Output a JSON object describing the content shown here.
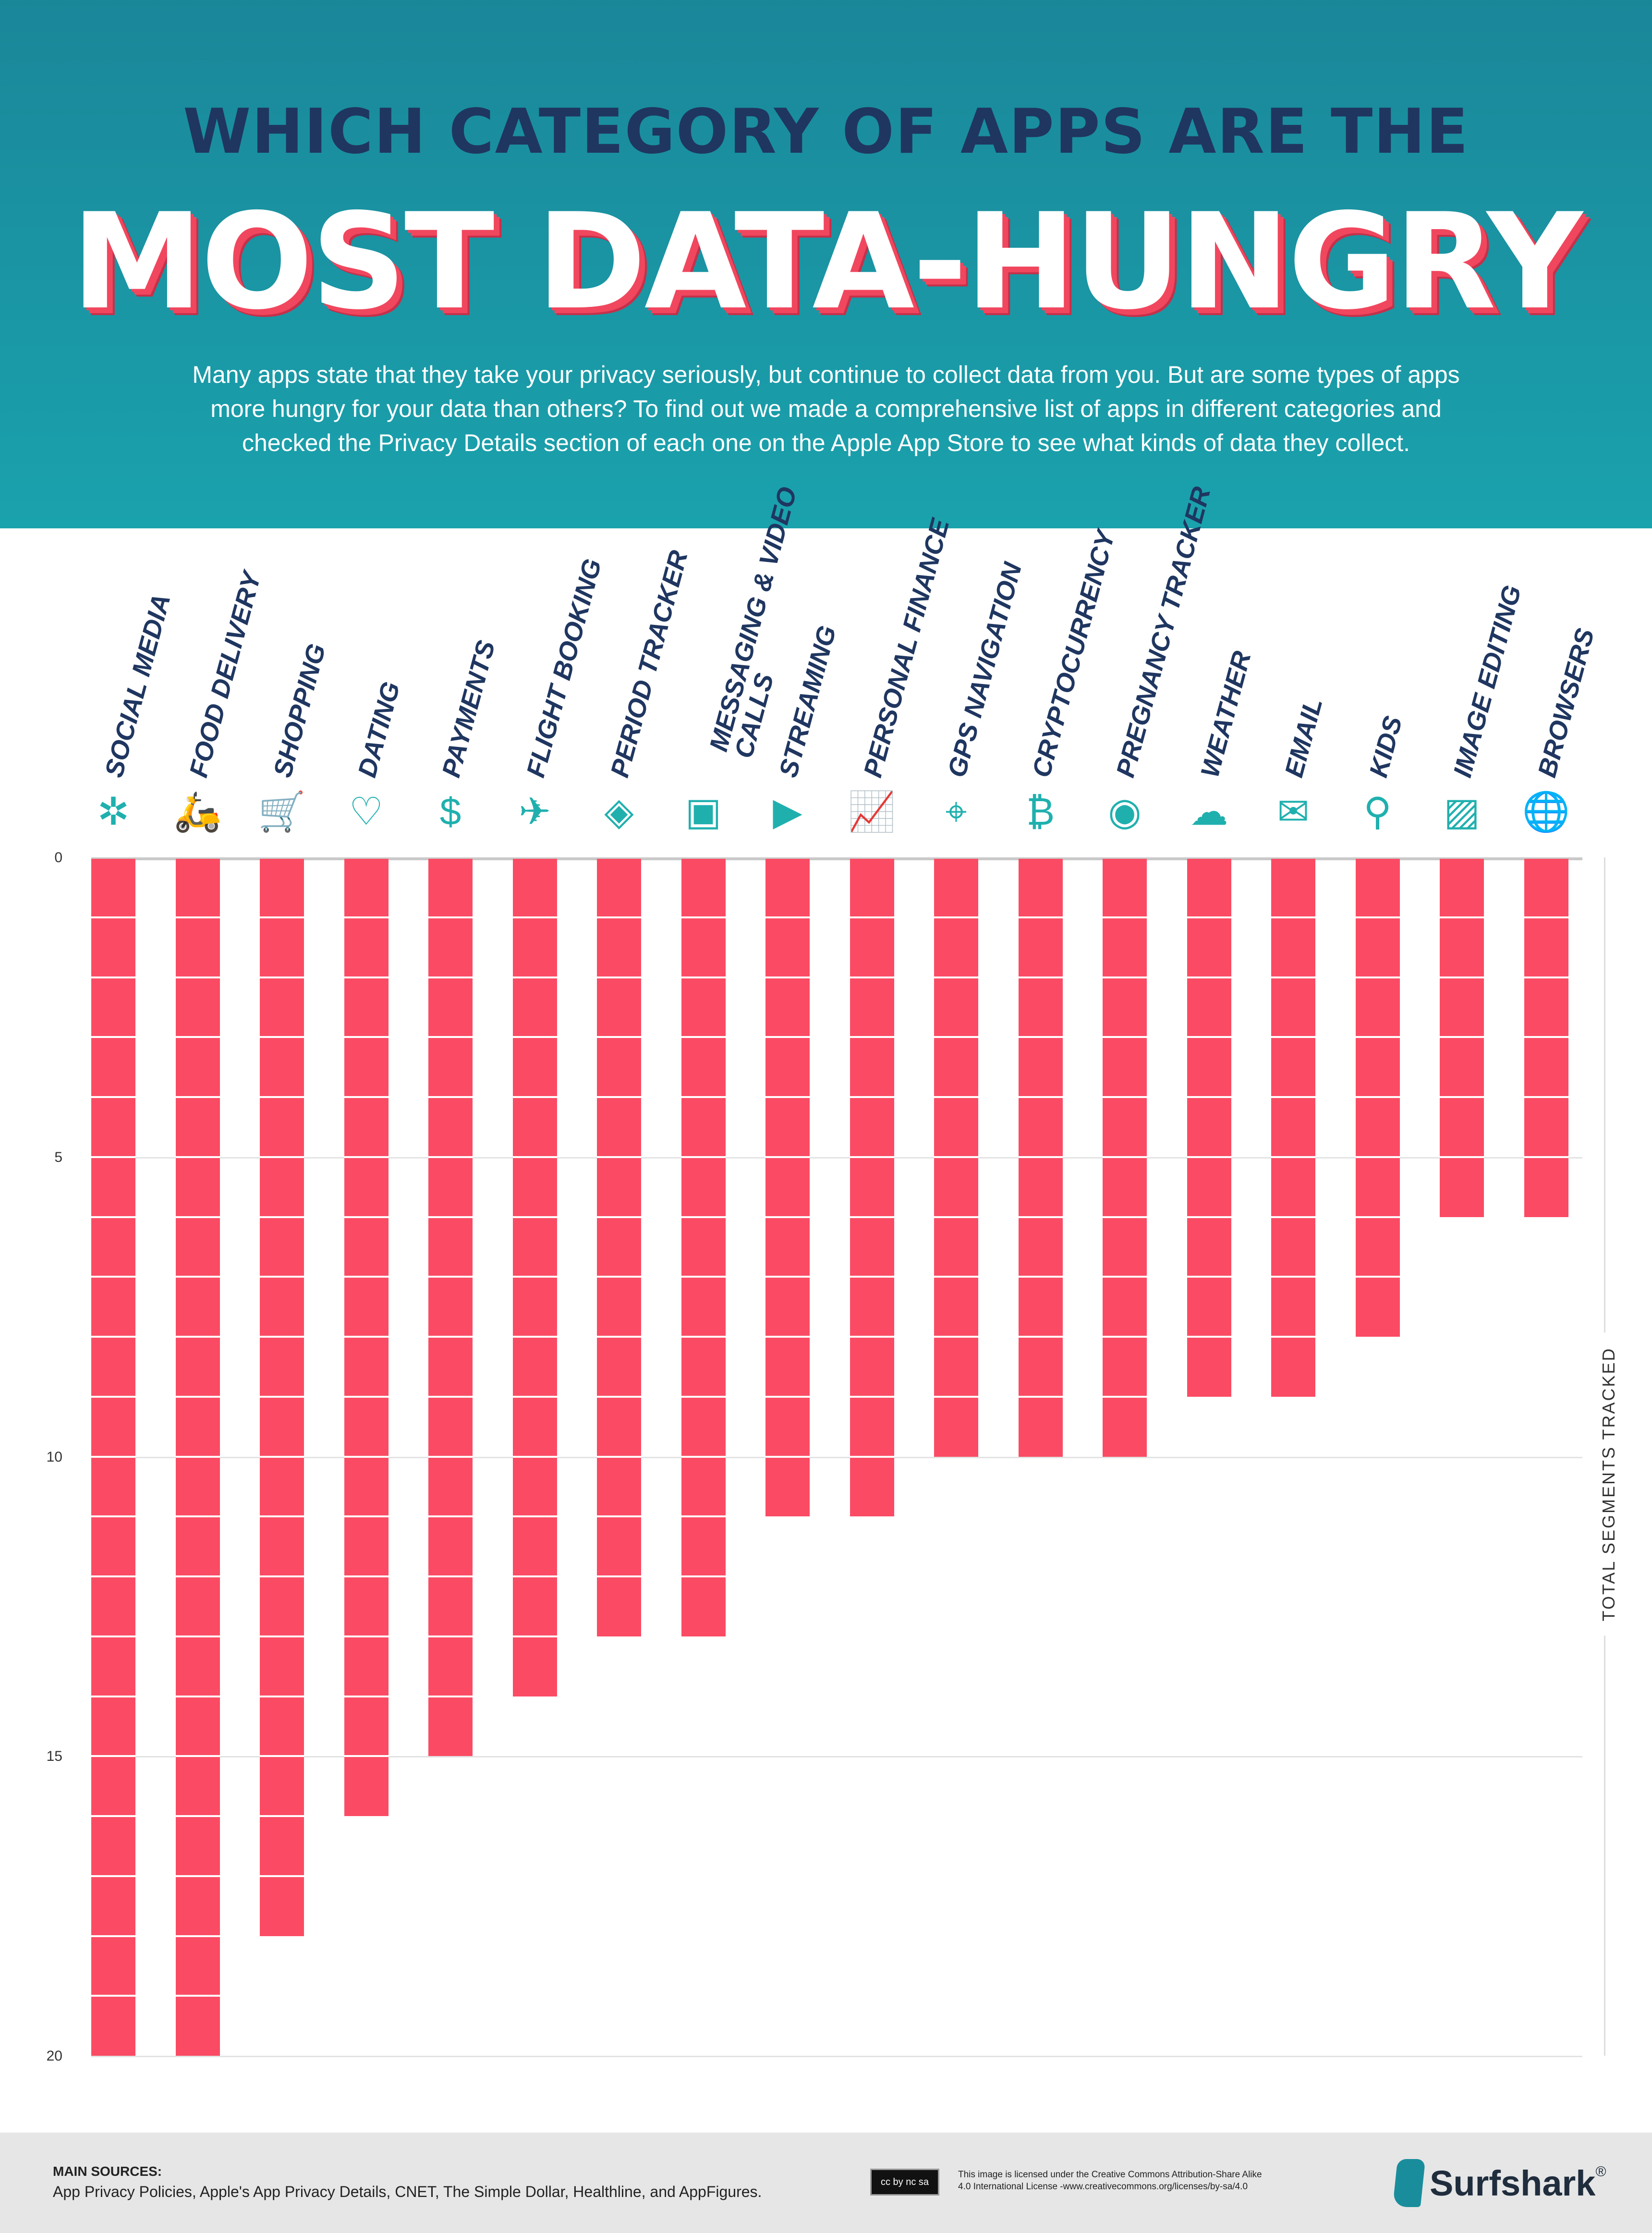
{
  "header": {
    "title_line1": "WHICH CATEGORY OF APPS ARE THE",
    "title_line2": "MOST DATA-HUNGRY",
    "intro_lines": [
      "Many apps state that they take your privacy seriously, but continue to collect data from you. But are some types of apps",
      "more hungry for your data than others? To find out we made a comprehensive list of apps in different categories and",
      "checked the Privacy Details section of each one on the Apple App Store to see what kinds of data they collect."
    ]
  },
  "colors": {
    "header_top": "#1a8799",
    "header_bottom": "#1aa2ad",
    "bar": "#fb4b64",
    "title": "#1f3660",
    "icon": "#1fb0ae"
  },
  "chart_data": {
    "type": "bar",
    "orientation": "vertical-downward",
    "ylabel": "TOTAL SEGMENTS TRACKED",
    "ylim": [
      0,
      20
    ],
    "yticks": [
      "0",
      "5",
      "10",
      "15",
      "20"
    ],
    "grid": true,
    "categories": [
      "SOCIAL MEDIA",
      "FOOD DELIVERY",
      "SHOPPING",
      "DATING",
      "PAYMENTS",
      "FLIGHT BOOKING",
      "PERIOD TRACKER",
      "MESSAGING & VIDEO CALLS",
      "STREAMING",
      "PERSONAL FINANCE",
      "GPS NAVIGATION",
      "CRYPTOCURRENCY",
      "PREGNANCY TRACKER",
      "WEATHER",
      "EMAIL",
      "KIDS",
      "IMAGE EDITING",
      "BROWSERS"
    ],
    "category_lines": [
      [
        "SOCIAL MEDIA"
      ],
      [
        "FOOD DELIVERY"
      ],
      [
        "SHOPPING"
      ],
      [
        "DATING"
      ],
      [
        "PAYMENTS"
      ],
      [
        "FLIGHT BOOKING"
      ],
      [
        "PERIOD TRACKER"
      ],
      [
        "MESSAGING & VIDEO",
        "CALLS"
      ],
      [
        "STREAMING"
      ],
      [
        "PERSONAL FINANCE"
      ],
      [
        "GPS NAVIGATION"
      ],
      [
        "CRYPTOCURRENCY"
      ],
      [
        "PREGNANCY TRACKER"
      ],
      [
        "WEATHER"
      ],
      [
        "EMAIL"
      ],
      [
        "KIDS"
      ],
      [
        "IMAGE EDITING"
      ],
      [
        "BROWSERS"
      ]
    ],
    "icons": [
      "network-icon",
      "scooter-icon",
      "cart-icon",
      "phone-heart-icon",
      "hand-phone-dollar-icon",
      "tablet-plane-icon",
      "calendar-drop-icon",
      "video-chat-icon",
      "play-icon",
      "growth-chart-icon",
      "phone-map-pin-icon",
      "coins-icon",
      "fetus-icon",
      "sun-cloud-icon",
      "envelope-at-icon",
      "rattle-icon",
      "image-icon",
      "globe-browser-icon"
    ],
    "values": [
      20,
      20,
      18,
      16,
      15,
      14,
      13,
      13,
      11,
      11,
      10,
      10,
      10,
      9,
      9,
      8,
      6,
      6
    ]
  },
  "footer": {
    "sources_heading": "MAIN SOURCES:",
    "sources": "App Privacy Policies, Apple's App Privacy Details, CNET, The Simple Dollar, Healthline, and AppFigures.",
    "cc_badge": "cc by nc sa",
    "license_line1": "This image is licensed under the Creative Commons Attribution-Share Alike",
    "license_line2": "4.0 International License -www.creativecommons.org/licenses/by-sa/4.0",
    "brand": "Surfshark",
    "brand_mark": "®"
  }
}
